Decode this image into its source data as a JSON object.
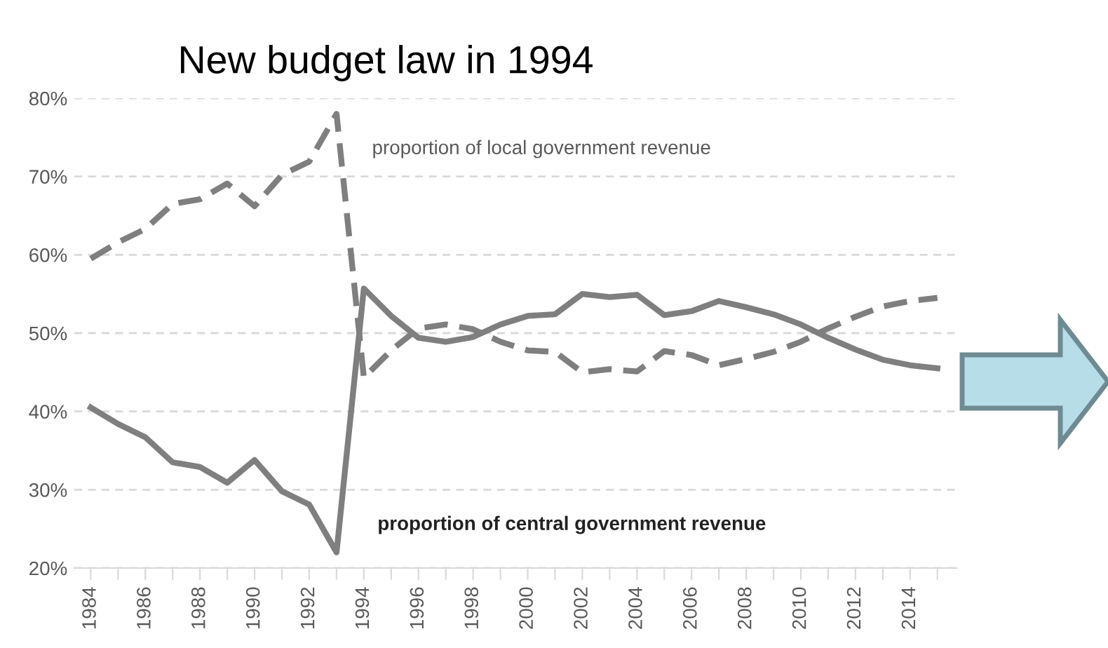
{
  "chart_data": {
    "type": "line",
    "x": [
      1984,
      1985,
      1986,
      1987,
      1988,
      1989,
      1990,
      1991,
      1992,
      1993,
      1994,
      1995,
      1996,
      1997,
      1998,
      1999,
      2000,
      2001,
      2002,
      2003,
      2004,
      2005,
      2006,
      2007,
      2008,
      2009,
      2010,
      2011,
      2012,
      2013,
      2014,
      2015
    ],
    "series": [
      {
        "name": "proportion of local government revenue",
        "color": "#7f7f7f",
        "line_style": "dashed",
        "values": [
          59.5,
          61.6,
          63.3,
          66.5,
          67.1,
          69.1,
          66.2,
          70.2,
          71.9,
          78.0,
          44.3,
          47.8,
          50.6,
          51.1,
          50.5,
          48.9,
          47.8,
          47.6,
          45.0,
          45.4,
          45.1,
          47.7,
          47.2,
          45.9,
          46.7,
          47.6,
          48.9,
          50.6,
          52.1,
          53.4,
          54.1,
          54.5
        ]
      },
      {
        "name": "proportion of central government revenue",
        "color": "#7f7f7f",
        "line_style": "solid",
        "values": [
          40.5,
          38.4,
          36.7,
          33.5,
          32.9,
          30.9,
          33.8,
          29.8,
          28.1,
          22.0,
          55.7,
          52.2,
          49.4,
          48.9,
          49.5,
          51.1,
          52.2,
          52.4,
          55.0,
          54.6,
          54.9,
          52.3,
          52.8,
          54.1,
          53.3,
          52.4,
          51.1,
          49.4,
          47.9,
          46.6,
          45.9,
          45.5
        ]
      }
    ],
    "annotations": [
      "New budget law in 1994"
    ],
    "xlim": [
      1983.4,
      2015.7
    ],
    "xticks": [
      1984,
      {
        "value": 1985,
        "label": null
      },
      1986,
      {
        "value": 1987,
        "label": null
      },
      1988,
      {
        "value": 1989,
        "label": null
      },
      1990,
      {
        "value": 1991,
        "label": null
      },
      1992,
      {
        "value": 1993,
        "label": null
      },
      1994,
      {
        "value": 1995,
        "label": null
      },
      1996,
      {
        "value": 1997,
        "label": null
      },
      1998,
      {
        "value": 1999,
        "label": null
      },
      2000,
      {
        "value": 2001,
        "label": null
      },
      2002,
      {
        "value": 2003,
        "label": null
      },
      2004,
      {
        "value": 2005,
        "label": null
      },
      2006,
      {
        "value": 2007,
        "label": null
      },
      2008,
      {
        "value": 2009,
        "label": null
      },
      2010,
      {
        "value": 2011,
        "label": null
      },
      2012,
      {
        "value": 2013,
        "label": null
      },
      2014,
      {
        "value": 2015,
        "label": null
      }
    ],
    "ylim": [
      20,
      80
    ],
    "yticks": [
      {
        "value": 20,
        "label": "20%"
      },
      {
        "value": 30,
        "label": "30%"
      },
      {
        "value": 40,
        "label": "40%"
      },
      {
        "value": 50,
        "label": "50%"
      },
      {
        "value": 60,
        "label": "60%"
      },
      {
        "value": 70,
        "label": "70%"
      },
      {
        "value": 80,
        "label": "80%"
      }
    ],
    "grid": "y",
    "legend": false
  }
}
